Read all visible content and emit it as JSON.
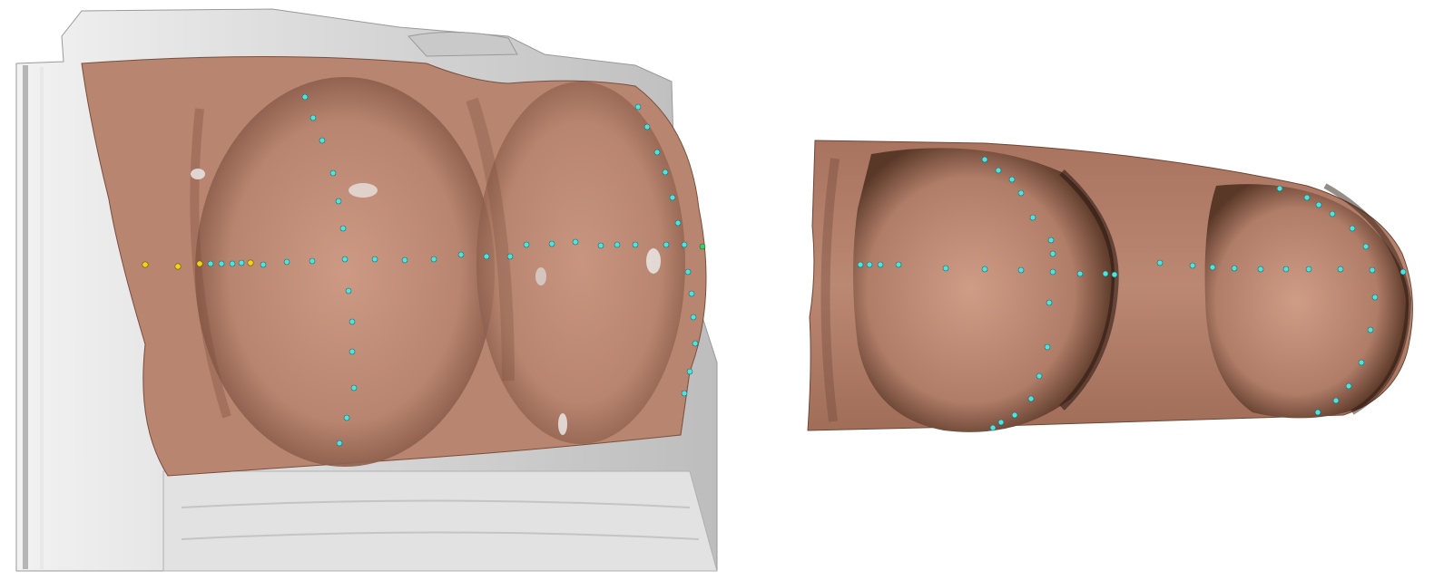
{
  "colors": {
    "background": "#ffffff",
    "scan_grey": "#d9d9d9",
    "scan_grey_dark": "#a8a8a8",
    "surface_flesh": "#b88570",
    "surface_flesh_light": "#cf9c86",
    "surface_flesh_dark": "#6e4636",
    "landmark_cyan": "#4fe3e0",
    "landmark_yellow": "#f2d21b",
    "landmark_green": "#3fcf6a"
  },
  "panels": [
    {
      "name": "left-3d-view",
      "content": "surface-with-scan"
    },
    {
      "name": "right-flattened-view",
      "content": "surface-only"
    }
  ]
}
